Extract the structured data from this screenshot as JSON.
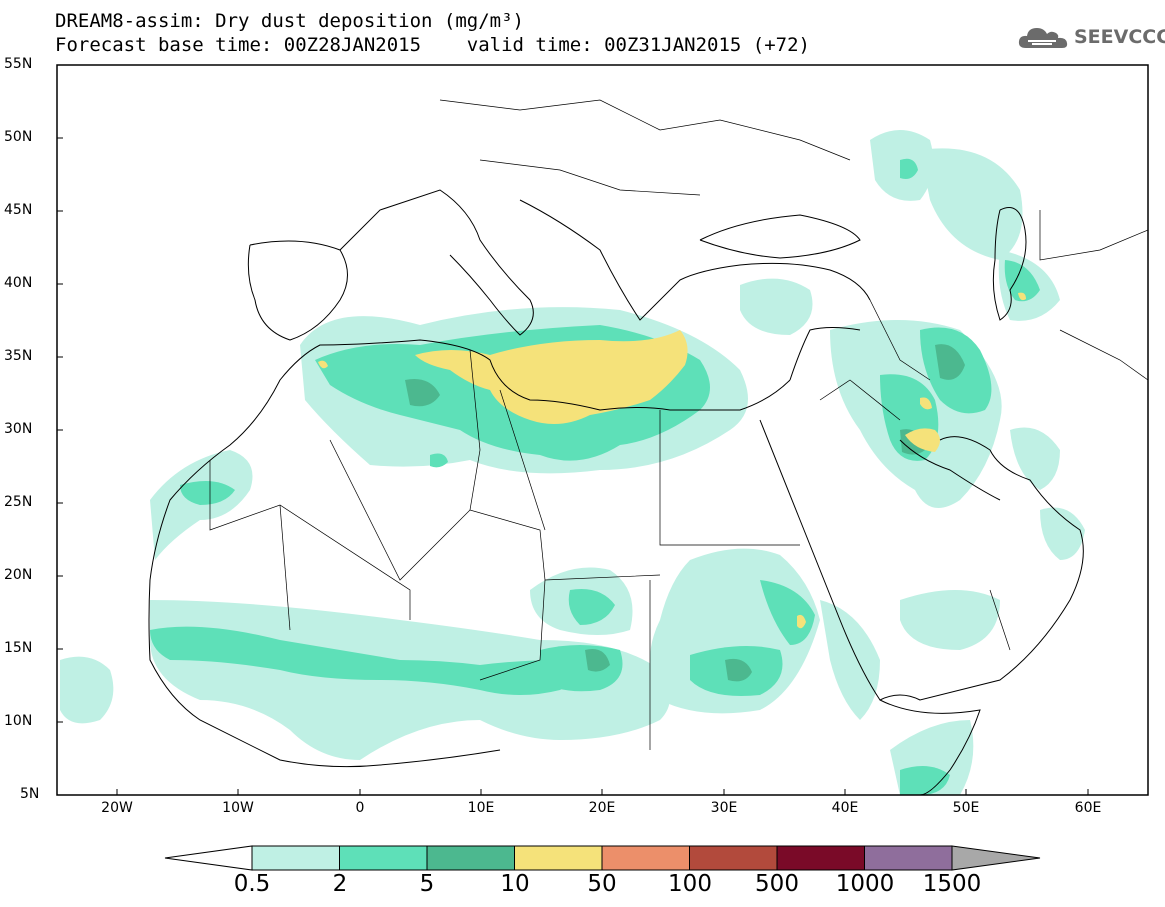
{
  "title": {
    "line1": "DREAM8-assim: Dry dust deposition (mg/m³)",
    "line2": "Forecast base time: 00Z28JAN2015    valid time: 00Z31JAN2015 (+72)"
  },
  "logo": {
    "text": "SEEVCCC",
    "icon": "cloud-logo-icon"
  },
  "map": {
    "lat_range": [
      5,
      55
    ],
    "lon_range": [
      -25,
      65
    ],
    "lat_labels": [
      "55N",
      "50N",
      "45N",
      "40N",
      "35N",
      "30N",
      "25N",
      "20N",
      "15N",
      "10N",
      "5N"
    ],
    "lon_labels": [
      "20W",
      "10W",
      "0",
      "10E",
      "20E",
      "30E",
      "40E",
      "50E",
      "60E"
    ]
  },
  "colorbar": {
    "labels": [
      "0.5",
      "2",
      "5",
      "10",
      "50",
      "100",
      "500",
      "1000",
      "1500"
    ],
    "colors": [
      "#bff0e4",
      "#5ee0b8",
      "#4cb88f",
      "#f5e27a",
      "#ec8f6a",
      "#b24a3c",
      "#7a0a28",
      "#8f6e9c",
      "#a8a8a8"
    ]
  }
}
